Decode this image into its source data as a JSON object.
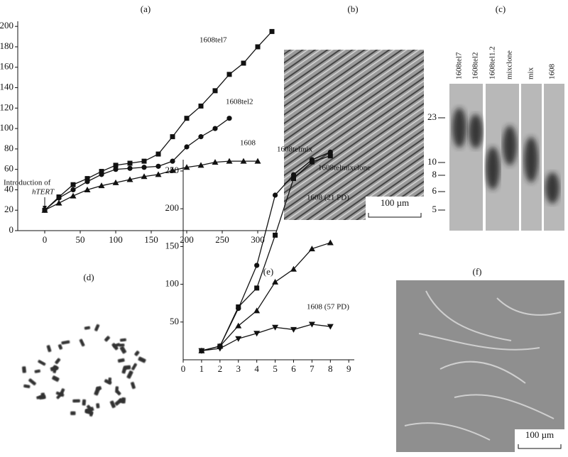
{
  "chart_data": [
    {
      "type": "line",
      "title": "(a)",
      "xlim": [
        -38,
        327
      ],
      "xticks": [
        0,
        50,
        100,
        150,
        200,
        250,
        300
      ],
      "ylim": [
        0,
        205
      ],
      "yticks": [
        0,
        20,
        40,
        60,
        80,
        100,
        120,
        140,
        160,
        180,
        200
      ],
      "annotations": [
        "Introduction of",
        "hTERT"
      ],
      "series": [
        {
          "name": "1608tel7",
          "color": "#111111",
          "marker": "square",
          "x": [
            0,
            20,
            40,
            60,
            80,
            100,
            120,
            140,
            160,
            180,
            200,
            220,
            240,
            260,
            280,
            300,
            320
          ],
          "values": [
            20,
            33,
            45,
            51,
            58,
            64,
            66,
            68,
            75,
            92,
            110,
            122,
            137,
            153,
            164,
            180,
            195
          ]
        },
        {
          "name": "1608tel2",
          "color": "#111111",
          "marker": "circle",
          "x": [
            0,
            20,
            40,
            60,
            80,
            100,
            120,
            140,
            160,
            180,
            200,
            220,
            240,
            260
          ],
          "values": [
            20,
            32,
            40,
            48,
            55,
            60,
            61,
            62,
            63,
            68,
            82,
            92,
            100,
            110
          ]
        },
        {
          "name": "1608",
          "color": "#111111",
          "marker": "triangle",
          "x": [
            0,
            20,
            40,
            60,
            80,
            100,
            120,
            140,
            160,
            180,
            200,
            220,
            240,
            260,
            280,
            300
          ],
          "values": [
            20,
            27,
            34,
            40,
            44,
            47,
            50,
            53,
            55,
            59,
            62,
            64,
            67,
            68,
            68,
            68
          ]
        }
      ]
    },
    {
      "type": "line",
      "title": "(e)",
      "xlim": [
        0,
        9.3
      ],
      "xticks": [
        0,
        1,
        2,
        3,
        4,
        5,
        6,
        7,
        8,
        9
      ],
      "ylim": [
        0,
        265
      ],
      "yticks": [
        50,
        100,
        150,
        200,
        250
      ],
      "series": [
        {
          "name": "1608telmix",
          "color": "#111111",
          "marker": "circle",
          "x": [
            1,
            2,
            3,
            4,
            5,
            6,
            7,
            8
          ],
          "values": [
            12,
            18,
            68,
            125,
            218,
            245,
            265,
            275
          ]
        },
        {
          "name": "1608telmixclone",
          "color": "#111111",
          "marker": "square",
          "x": [
            1,
            2,
            3,
            4,
            5,
            6,
            7,
            8
          ],
          "values": [
            12,
            18,
            70,
            95,
            165,
            240,
            262,
            270
          ]
        },
        {
          "name": "1608 (21 PD)",
          "color": "#111111",
          "marker": "triangle",
          "x": [
            1,
            2,
            3,
            4,
            5,
            6,
            7,
            8
          ],
          "values": [
            12,
            18,
            45,
            65,
            103,
            120,
            147,
            155
          ]
        },
        {
          "name": "1608 (57 PD)",
          "color": "#111111",
          "marker": "triangle-down",
          "x": [
            1,
            2,
            3,
            4,
            5,
            6,
            7,
            8
          ],
          "values": [
            12,
            15,
            28,
            35,
            43,
            40,
            47,
            44
          ]
        }
      ]
    }
  ],
  "panels": {
    "b": {
      "label": "(b)",
      "scale": "100 µm"
    },
    "c": {
      "label": "(c)",
      "lanes": [
        "1608tel7",
        "1608tel2",
        "1608tel1.2",
        "mixclone",
        "mix",
        "1608"
      ],
      "markers": [
        23,
        10,
        8,
        6,
        5
      ]
    },
    "d": {
      "label": "(d)"
    },
    "f": {
      "label": "(f)",
      "scale": "100 µm"
    }
  }
}
